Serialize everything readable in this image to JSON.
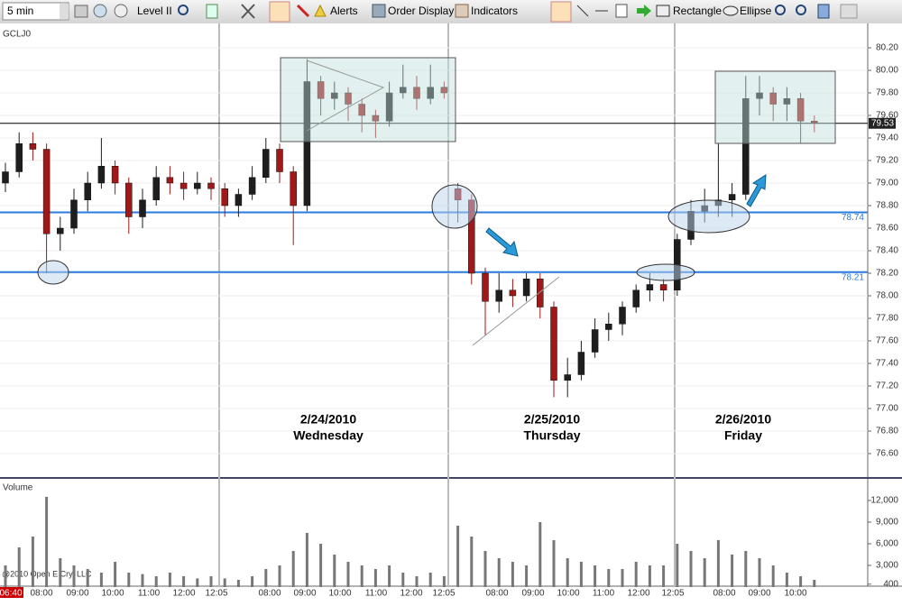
{
  "toolbar": {
    "interval": "5 min",
    "items": [
      "Level II",
      "Alerts",
      "Order Display",
      "Indicators",
      "Rectangle",
      "Ellipse"
    ]
  },
  "chart": {
    "type": "candlestick",
    "symbol": "GCLJ0",
    "up_color": "#1e1e1e",
    "down_color": "#a01818",
    "ylim": [
      76.4,
      80.4
    ],
    "yticks": [
      {
        "value": 80.2,
        "label": "80.20"
      },
      {
        "value": 80.0,
        "label": "80.00"
      },
      {
        "value": 79.8,
        "label": "79.80"
      },
      {
        "value": 79.6,
        "label": "79.60"
      },
      {
        "value": 79.4,
        "label": "79.40"
      },
      {
        "value": 79.2,
        "label": "79.20"
      },
      {
        "value": 79.0,
        "label": "79.00"
      },
      {
        "value": 78.8,
        "label": "78.80"
      },
      {
        "value": 78.6,
        "label": "78.60"
      },
      {
        "value": 78.4,
        "label": "78.40"
      },
      {
        "value": 78.2,
        "label": "78.20"
      },
      {
        "value": 78.0,
        "label": "78.00"
      },
      {
        "value": 77.8,
        "label": "77.80"
      },
      {
        "value": 77.6,
        "label": "77.60"
      },
      {
        "value": 77.4,
        "label": "77.40"
      },
      {
        "value": 77.2,
        "label": "77.20"
      },
      {
        "value": 77.0,
        "label": "77.00"
      },
      {
        "value": 76.8,
        "label": "76.80"
      },
      {
        "value": 76.6,
        "label": "76.60"
      }
    ],
    "levels": [
      {
        "value": 78.74,
        "label": "78.74"
      },
      {
        "value": 78.21,
        "label": "78.21"
      }
    ],
    "last_price": {
      "value": 79.53,
      "label": "79.53"
    },
    "candles": [
      [
        79.0,
        79.18,
        78.92,
        79.1
      ],
      [
        79.1,
        79.45,
        79.05,
        79.35
      ],
      [
        79.35,
        79.45,
        79.2,
        79.3
      ],
      [
        79.3,
        79.35,
        78.2,
        78.55
      ],
      [
        78.55,
        78.7,
        78.4,
        78.6
      ],
      [
        78.6,
        78.95,
        78.55,
        78.85
      ],
      [
        78.85,
        79.1,
        78.75,
        79.0
      ],
      [
        79.0,
        79.4,
        78.95,
        79.15
      ],
      [
        79.15,
        79.2,
        78.9,
        79.0
      ],
      [
        79.0,
        79.05,
        78.55,
        78.7
      ],
      [
        78.7,
        78.95,
        78.6,
        78.85
      ],
      [
        78.85,
        79.15,
        78.8,
        79.05
      ],
      [
        79.05,
        79.15,
        78.9,
        79.0
      ],
      [
        79.0,
        79.1,
        78.85,
        78.95
      ],
      [
        78.95,
        79.1,
        78.9,
        79.0
      ],
      [
        79.0,
        79.05,
        78.85,
        78.95
      ],
      [
        78.95,
        79.0,
        78.7,
        78.8
      ],
      [
        78.8,
        78.95,
        78.7,
        78.9
      ],
      [
        78.9,
        79.15,
        78.85,
        79.05
      ],
      [
        79.05,
        79.4,
        79.0,
        79.3
      ],
      [
        79.3,
        79.35,
        79.0,
        79.1
      ],
      [
        79.1,
        79.15,
        78.45,
        78.8
      ],
      [
        78.8,
        80.1,
        78.75,
        79.9
      ],
      [
        79.9,
        79.95,
        79.6,
        79.75
      ],
      [
        79.75,
        79.9,
        79.65,
        79.8
      ],
      [
        79.8,
        79.85,
        79.55,
        79.7
      ],
      [
        79.7,
        79.75,
        79.45,
        79.6
      ],
      [
        79.6,
        79.65,
        79.4,
        79.55
      ],
      [
        79.55,
        79.9,
        79.5,
        79.8
      ],
      [
        79.8,
        80.05,
        79.75,
        79.85
      ],
      [
        79.85,
        79.95,
        79.65,
        79.75
      ],
      [
        79.75,
        80.05,
        79.7,
        79.85
      ],
      [
        79.85,
        79.9,
        79.75,
        79.8
      ],
      [
        78.95,
        79.0,
        78.65,
        78.85
      ],
      [
        78.85,
        78.9,
        78.1,
        78.2
      ],
      [
        78.2,
        78.25,
        77.65,
        77.95
      ],
      [
        77.95,
        78.2,
        77.85,
        78.05
      ],
      [
        78.05,
        78.15,
        77.9,
        78.0
      ],
      [
        78.0,
        78.2,
        77.95,
        78.15
      ],
      [
        78.15,
        78.2,
        77.8,
        77.9
      ],
      [
        77.9,
        77.95,
        77.1,
        77.25
      ],
      [
        77.25,
        77.45,
        77.1,
        77.3
      ],
      [
        77.3,
        77.6,
        77.25,
        77.5
      ],
      [
        77.5,
        77.8,
        77.45,
        77.7
      ],
      [
        77.7,
        77.85,
        77.6,
        77.75
      ],
      [
        77.75,
        77.95,
        77.65,
        77.9
      ],
      [
        77.9,
        78.1,
        77.85,
        78.05
      ],
      [
        78.05,
        78.2,
        77.95,
        78.1
      ],
      [
        78.1,
        78.15,
        77.95,
        78.05
      ],
      [
        78.05,
        78.55,
        78.0,
        78.5
      ],
      [
        78.5,
        78.85,
        78.45,
        78.75
      ],
      [
        78.75,
        78.95,
        78.65,
        78.8
      ],
      [
        78.8,
        79.35,
        78.7,
        78.85
      ],
      [
        78.85,
        79.0,
        78.7,
        78.9
      ],
      [
        78.9,
        79.95,
        78.85,
        79.75
      ],
      [
        79.75,
        79.95,
        79.6,
        79.8
      ],
      [
        79.8,
        79.85,
        79.55,
        79.7
      ],
      [
        79.7,
        79.85,
        79.55,
        79.75
      ],
      [
        79.75,
        79.8,
        79.35,
        79.55
      ],
      [
        79.55,
        79.6,
        79.45,
        79.53
      ]
    ],
    "annotations": [
      {
        "date": "2/24/2010",
        "day": "Wednesday"
      },
      {
        "date": "2/25/2010",
        "day": "Thursday"
      },
      {
        "date": "2/26/2010",
        "day": "Friday"
      }
    ],
    "time_labels": [
      "06:40",
      "08:00",
      "09:00",
      "10:00",
      "11:00",
      "12:00",
      "12:05",
      "08:00",
      "09:00",
      "10:00",
      "11:00",
      "12:00",
      "12:05",
      "08:00",
      "09:00",
      "10:00",
      "11:00",
      "12:00",
      "12:05",
      "08:00",
      "09:00",
      "10:00"
    ]
  },
  "volume": {
    "title": "Volume",
    "color": "#777777",
    "ylim": [
      0,
      14500
    ],
    "yticks": [
      {
        "value": 12000,
        "label": "12,000"
      },
      {
        "value": 9000,
        "label": "9,000"
      },
      {
        "value": 6000,
        "label": "6,000"
      },
      {
        "value": 3000,
        "label": "3,000"
      },
      {
        "value": 400,
        "label": "400"
      }
    ],
    "values": [
      3000,
      5500,
      7000,
      12500,
      4000,
      3000,
      2500,
      2000,
      3500,
      2000,
      1800,
      1500,
      2000,
      1500,
      1200,
      1500,
      1200,
      1000,
      1500,
      2500,
      3000,
      5000,
      7500,
      6000,
      4500,
      3500,
      3000,
      2500,
      3000,
      2000,
      1500,
      2000,
      1500,
      8500,
      7000,
      5000,
      4000,
      3500,
      3000,
      9000,
      6500,
      4000,
      3500,
      3000,
      2500,
      2500,
      3500,
      3000,
      3000,
      6000,
      5000,
      4000,
      6500,
      4500,
      5000,
      4000,
      3000,
      2000,
      1500,
      1000
    ]
  },
  "copyright": "@2010 Open E Cry, LLC"
}
